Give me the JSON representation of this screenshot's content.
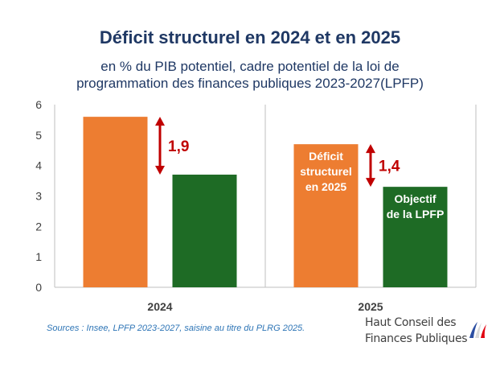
{
  "chart_data": {
    "type": "bar",
    "title": "Déficit structurel en 2024 et en 2025",
    "subtitle_lines": [
      "en % du PIB potentiel, cadre potentiel de la loi de",
      "programmation des finances publiques 2023-2027(LPFP)"
    ],
    "categories": [
      "2024",
      "2025"
    ],
    "series": [
      {
        "values": [
          5.6,
          4.7
        ],
        "color": "#ed7d31",
        "labels_in_bar": [
          "",
          "Déficit structurel en 2025"
        ]
      },
      {
        "values": [
          3.7,
          3.3
        ],
        "color": "#1e6b25",
        "labels_in_bar": [
          "",
          "Objectif de la LPFP"
        ]
      }
    ],
    "differences": [
      {
        "category": "2024",
        "label": "1,9"
      },
      {
        "category": "2025",
        "label": "1,4"
      }
    ],
    "ylim": [
      0,
      6
    ],
    "yticks": [
      "0",
      "1",
      "2",
      "3",
      "4",
      "5",
      "6"
    ],
    "grid": "vertical separator between categories",
    "annotation_color": "#c00000"
  },
  "source": "Sources : Insee, LPFP 2023-2027, saisine au titre du PLRG 2025.",
  "logo": {
    "line1": "Haut Conseil des",
    "line2": "Finances Publiques"
  }
}
